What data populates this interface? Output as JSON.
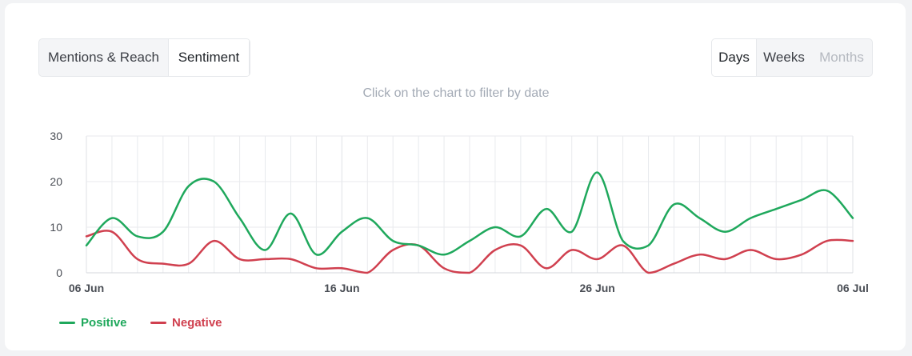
{
  "tabs": {
    "metric": [
      {
        "label": "Mentions & Reach",
        "active": false
      },
      {
        "label": "Sentiment",
        "active": true
      }
    ],
    "period": [
      {
        "label": "Days",
        "active": true,
        "disabled": false
      },
      {
        "label": "Weeks",
        "active": false,
        "disabled": false
      },
      {
        "label": "Months",
        "active": false,
        "disabled": true
      }
    ]
  },
  "hint": "Click on the chart to filter by date",
  "colors": {
    "positive": "#1fa85c",
    "negative": "#d0404f",
    "grid": "#e8eaed",
    "tick": "#4a4e55"
  },
  "chart_data": {
    "type": "line",
    "x": [
      "2023-06-06",
      "2023-06-07",
      "2023-06-08",
      "2023-06-09",
      "2023-06-10",
      "2023-06-11",
      "2023-06-12",
      "2023-06-13",
      "2023-06-14",
      "2023-06-15",
      "2023-06-16",
      "2023-06-17",
      "2023-06-18",
      "2023-06-19",
      "2023-06-20",
      "2023-06-21",
      "2023-06-22",
      "2023-06-23",
      "2023-06-24",
      "2023-06-25",
      "2023-06-26",
      "2023-06-27",
      "2023-06-28",
      "2023-06-29",
      "2023-06-30",
      "2023-07-01",
      "2023-07-02",
      "2023-07-03",
      "2023-07-04",
      "2023-07-05",
      "2023-07-06"
    ],
    "x_tick_labels": [
      "06 Jun",
      "16 Jun",
      "26 Jun",
      "06 Jul"
    ],
    "x_tick_dates": [
      "2023-06-06",
      "2023-06-16",
      "2023-06-26",
      "2023-07-06"
    ],
    "series": [
      {
        "name": "Positive",
        "values": [
          6,
          12,
          8,
          9,
          19,
          20,
          12,
          5,
          13,
          4,
          9,
          12,
          7,
          6,
          4,
          7,
          10,
          8,
          14,
          9,
          22,
          7,
          6,
          15,
          12,
          9,
          12,
          14,
          16,
          18,
          12
        ]
      },
      {
        "name": "Negative",
        "values": [
          8,
          9,
          3,
          2,
          2,
          7,
          3,
          3,
          3,
          1,
          1,
          0,
          5,
          6,
          1,
          0,
          5,
          6,
          1,
          5,
          3,
          6,
          0,
          2,
          4,
          3,
          5,
          3,
          4,
          7,
          7
        ]
      }
    ],
    "yticks": [
      0,
      10,
      20,
      30
    ],
    "ylim": [
      0,
      30
    ],
    "grid": true,
    "legend": "bottom-left"
  }
}
